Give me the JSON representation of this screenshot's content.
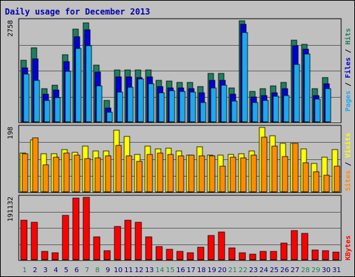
{
  "title": "Daily usage for December 2013",
  "colors": {
    "hits": "#1f7f5f",
    "files": "#0000d8",
    "pages": "#1ea8ee",
    "visits": "#ffff00",
    "sites": "#ff8c00",
    "kbytes": "#ff0000",
    "weekend": "#1f7f5f",
    "weekday": "#000080"
  },
  "chart_data": {
    "type": "bar",
    "title": "Daily usage for December 2013",
    "categories": [
      "1",
      "2",
      "3",
      "4",
      "5",
      "6",
      "7",
      "8",
      "9",
      "10",
      "11",
      "12",
      "13",
      "14",
      "15",
      "16",
      "17",
      "18",
      "19",
      "20",
      "21",
      "22",
      "23",
      "24",
      "25",
      "26",
      "27",
      "28",
      "29",
      "30",
      "31"
    ],
    "weekend_days": [
      "1",
      "7",
      "8",
      "14",
      "15",
      "21",
      "22",
      "28",
      "29"
    ],
    "panels": [
      {
        "name": "hits-files-pages",
        "ymax_label": "2758",
        "ymax": 2758,
        "labels": [
          "Pages",
          "Files",
          "Hits"
        ],
        "series": [
          {
            "name": "Hits",
            "values": [
              1680,
              2020,
              910,
              1010,
              1830,
              2540,
              2710,
              1550,
              580,
              1420,
              1420,
              1410,
              1410,
              1140,
              1110,
              1080,
              1080,
              960,
              1320,
              1320,
              930,
              2750,
              840,
              900,
              990,
              1080,
              2220,
              2120,
              900,
              1200,
              0
            ]
          },
          {
            "name": "Files",
            "values": [
              1480,
              1720,
              760,
              860,
              1640,
              2320,
              2510,
              1360,
              380,
              1230,
              1220,
              1210,
              1220,
              960,
              920,
              920,
              900,
              790,
              1140,
              1140,
              750,
              2660,
              680,
              720,
              800,
              900,
              2080,
              1990,
              720,
              1030,
              0
            ]
          },
          {
            "name": "Pages",
            "values": [
              1300,
              1140,
              580,
              660,
              1380,
              2010,
              2070,
              990,
              260,
              820,
              950,
              1170,
              1030,
              800,
              850,
              830,
              810,
              530,
              920,
              1000,
              570,
              2440,
              520,
              590,
              700,
              720,
              1570,
              1860,
              630,
              910,
              0
            ]
          }
        ]
      },
      {
        "name": "visits-sites",
        "ymax_label": "198",
        "ymax": 198,
        "labels": [
          "Sites",
          "Visits"
        ],
        "series": [
          {
            "name": "Visits",
            "values": [
              120,
              160,
              118,
              118,
              129,
              121,
              141,
              125,
              126,
              189,
              171,
              116,
              140,
              133,
              135,
              125,
              113,
              138,
              113,
              113,
              116,
              118,
              126,
              198,
              172,
              148,
              149,
              132,
              88,
              107,
              130
            ]
          },
          {
            "name": "Sites",
            "values": [
              118,
              166,
              82,
              106,
              120,
              112,
              102,
              104,
              110,
              142,
              111,
              94,
              114,
              119,
              115,
              110,
              112,
              110,
              110,
              78,
              107,
              104,
              112,
              168,
              140,
              108,
              148,
              90,
              62,
              52,
              78
            ]
          }
        ]
      },
      {
        "name": "kbytes",
        "ymax_label": "191132",
        "ymax": 191132,
        "labels": [
          "KBytes"
        ],
        "series": [
          {
            "name": "KBytes",
            "values": [
              122000,
              114000,
              25000,
              22000,
              135000,
              190000,
              191132,
              71000,
              28000,
              101000,
              121000,
              114000,
              70000,
              41000,
              32000,
              26000,
              22000,
              38000,
              75000,
              84000,
              36000,
              22000,
              17000,
              26000,
              25000,
              52000,
              90000,
              81000,
              29000,
              27000,
              24000
            ]
          }
        ]
      }
    ]
  }
}
